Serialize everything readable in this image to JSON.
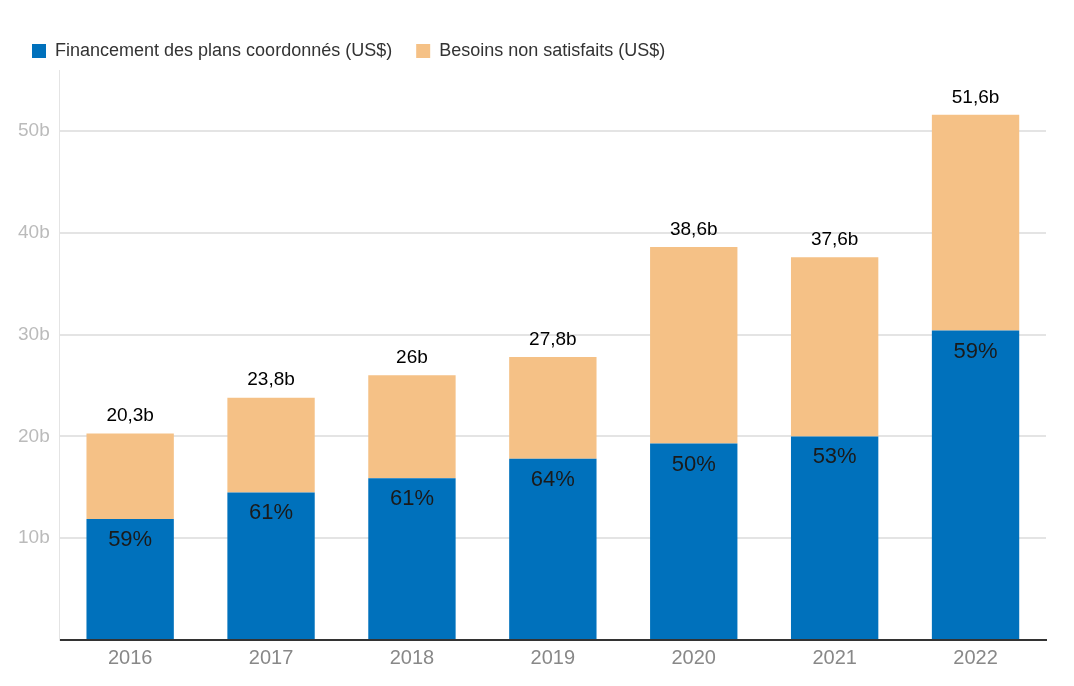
{
  "chart_data": {
    "type": "bar",
    "stacked": true,
    "categories": [
      "2016",
      "2017",
      "2018",
      "2019",
      "2020",
      "2021",
      "2022"
    ],
    "series": [
      {
        "name": "Financement des plans coordonnés (US$)",
        "color": "#0071bc",
        "values": [
          11.9,
          14.5,
          15.9,
          17.8,
          19.3,
          20.0,
          30.4
        ]
      },
      {
        "name": "Besoins non satisfaits (US$)",
        "color": "#f5c186",
        "values": [
          8.4,
          9.3,
          10.1,
          10.0,
          19.3,
          17.6,
          21.2
        ]
      }
    ],
    "totals": [
      "20,3b",
      "23,8b",
      "26b",
      "27,8b",
      "38,6b",
      "37,6b",
      "51,6b"
    ],
    "ylim": [
      0,
      56
    ],
    "yticks": [
      {
        "value": 0,
        "label": null
      },
      {
        "value": 10,
        "label": "10b"
      },
      {
        "value": 20,
        "label": "20b"
      },
      {
        "value": 30,
        "label": "30b"
      },
      {
        "value": 40,
        "label": "40b"
      },
      {
        "value": 50,
        "label": "50b"
      }
    ],
    "grid": "y",
    "legend": "top left",
    "annotations": [
      {
        "text": "59%",
        "x": "2016",
        "y": 11.9
      },
      {
        "text": "61%",
        "x": "2017",
        "y": 14.5
      },
      {
        "text": "61%",
        "x": "2018",
        "y": 15.9
      },
      {
        "text": "64%",
        "x": "2019",
        "y": 17.8
      },
      {
        "text": "50%",
        "x": "2020",
        "y": 19.3
      },
      {
        "text": "53%",
        "x": "2021",
        "y": 20.0
      },
      {
        "text": "59%",
        "x": "2022",
        "y": 30.4
      }
    ]
  }
}
